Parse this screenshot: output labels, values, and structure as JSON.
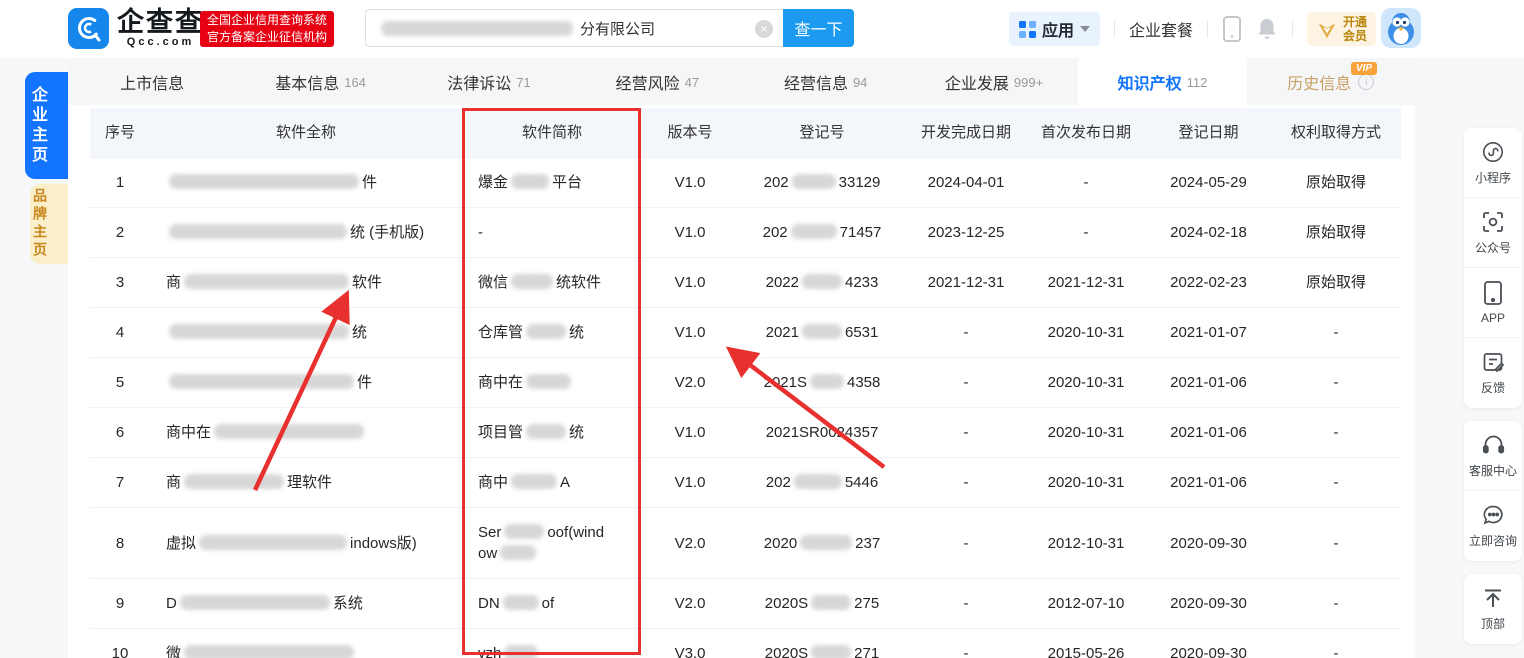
{
  "colors": {
    "brand_blue": "#1b9aef",
    "active_blue": "#1374ff",
    "badge_red": "#e60012",
    "annotation_red": "#e8312f",
    "vip_gold": "#c9a063"
  },
  "topbar": {
    "logo_cn": "企查查",
    "logo_en": "Qcc.com",
    "badge_line1": "全国企业信用查询系统",
    "badge_line2": "官方备案企业征信机构",
    "search": {
      "visible_text": "分有限公司",
      "button_label": "查一下",
      "clear_icon": "×"
    },
    "apps_label": "应用",
    "package_label": "企业套餐",
    "vip_line1": "开通",
    "vip_line2": "会员"
  },
  "left_tabs": [
    {
      "key": "enterprise",
      "label": "企业主页"
    },
    {
      "key": "brand",
      "label": "品牌主页"
    }
  ],
  "nav": {
    "tabs": [
      {
        "label": "上市信息",
        "count": ""
      },
      {
        "label": "基本信息",
        "count": "164"
      },
      {
        "label": "法律诉讼",
        "count": "71"
      },
      {
        "label": "经营风险",
        "count": "47"
      },
      {
        "label": "经营信息",
        "count": "94"
      },
      {
        "label": "企业发展",
        "count": "999+"
      },
      {
        "label": "知识产权",
        "count": "112",
        "active": true
      },
      {
        "label": "历史信息",
        "count": "",
        "vip": true,
        "vip_badge": "VIP",
        "info": true
      }
    ]
  },
  "table": {
    "columns": [
      "序号",
      "软件全称",
      "软件简称",
      "版本号",
      "登记号",
      "开发完成日期",
      "首次发布日期",
      "登记日期",
      "权利取得方式"
    ],
    "rows": [
      {
        "no": "1",
        "full": [
          [
            190,
            "件"
          ]
        ],
        "short": [
          [
            "爆金",
            38,
            "平台"
          ]
        ],
        "ver": "V1.0",
        "reg": [
          [
            "202",
            44,
            "33129"
          ]
        ],
        "dev": "2024-04-01",
        "pub": "-",
        "regd": "2024-05-29",
        "method": "原始取得"
      },
      {
        "no": "2",
        "full": [
          [
            178,
            "统 (手机版)"
          ]
        ],
        "short": [
          [
            "-"
          ]
        ],
        "ver": "V1.0",
        "reg": [
          [
            "202",
            46,
            "71457"
          ]
        ],
        "dev": "2023-12-25",
        "pub": "-",
        "regd": "2024-02-18",
        "method": "原始取得"
      },
      {
        "no": "3",
        "full": [
          [
            "商",
            165,
            "软件"
          ]
        ],
        "short": [
          [
            "微信",
            42,
            "统软件"
          ]
        ],
        "ver": "V1.0",
        "reg": [
          [
            "2022",
            40,
            "4233"
          ]
        ],
        "dev": "2021-12-31",
        "pub": "2021-12-31",
        "regd": "2022-02-23",
        "method": "原始取得"
      },
      {
        "no": "4",
        "full": [
          [
            180,
            "统"
          ]
        ],
        "short": [
          [
            "仓库管",
            40,
            "统"
          ]
        ],
        "ver": "V1.0",
        "reg": [
          [
            "2021",
            40,
            "6531"
          ]
        ],
        "dev": "-",
        "pub": "2020-10-31",
        "regd": "2021-01-07",
        "method": "-"
      },
      {
        "no": "5",
        "full": [
          [
            185,
            "件"
          ]
        ],
        "short": [
          [
            "商中在",
            45
          ]
        ],
        "ver": "V2.0",
        "reg": [
          [
            "2021S",
            34,
            "4358"
          ]
        ],
        "dev": "-",
        "pub": "2020-10-31",
        "regd": "2021-01-06",
        "method": "-"
      },
      {
        "no": "6",
        "full": [
          [
            "商中在",
            150
          ]
        ],
        "short": [
          [
            "项目管",
            40,
            "统"
          ]
        ],
        "ver": "V1.0",
        "reg": [
          [
            "2021SR0024357"
          ]
        ],
        "dev": "-",
        "pub": "2020-10-31",
        "regd": "2021-01-06",
        "method": "-"
      },
      {
        "no": "7",
        "full": [
          [
            "商",
            100,
            "理软件"
          ]
        ],
        "short": [
          [
            "商中",
            46,
            "A"
          ]
        ],
        "ver": "V1.0",
        "reg": [
          [
            "202",
            48,
            "5446"
          ]
        ],
        "dev": "-",
        "pub": "2020-10-31",
        "regd": "2021-01-06",
        "method": "-"
      },
      {
        "no": "8",
        "full": [
          [
            "虚拟",
            148,
            "indows版)"
          ]
        ],
        "short": [
          [
            "Ser",
            40,
            "oof(wind"
          ],
          [
            "ow",
            36
          ]
        ],
        "ver": "V2.0",
        "reg": [
          [
            "2020",
            52,
            "237"
          ]
        ],
        "dev": "-",
        "pub": "2012-10-31",
        "regd": "2020-09-30",
        "method": "-"
      },
      {
        "no": "9",
        "full": [
          [
            "D",
            150,
            "系统"
          ]
        ],
        "short": [
          [
            "DN",
            36,
            "of"
          ]
        ],
        "ver": "V2.0",
        "reg": [
          [
            "2020S",
            40,
            "275"
          ]
        ],
        "dev": "-",
        "pub": "2012-07-10",
        "regd": "2020-09-30",
        "method": "-"
      },
      {
        "no": "10",
        "full": [
          [
            "微",
            170
          ]
        ],
        "short": [
          [
            "vzh",
            34
          ]
        ],
        "ver": "V3.0",
        "reg": [
          [
            "2020S",
            40,
            "271"
          ]
        ],
        "dev": "-",
        "pub": "2015-05-26",
        "regd": "2020-09-30",
        "method": "-"
      }
    ]
  },
  "right_sidebar": {
    "groups": [
      [
        {
          "icon": "miniprogram-icon",
          "label": "小程序"
        },
        {
          "icon": "qr-scan-icon",
          "label": "公众号"
        },
        {
          "icon": "phone-icon",
          "label": "APP"
        },
        {
          "icon": "feedback-icon",
          "label": "反馈"
        }
      ],
      [
        {
          "icon": "headset-icon",
          "label": "客服中心"
        },
        {
          "icon": "chat-icon",
          "label": "立即咨询"
        }
      ],
      [
        {
          "icon": "back-to-top-icon",
          "label": "顶部"
        }
      ]
    ]
  },
  "annotations": {
    "highlighted_column": "软件简称",
    "arrow_count": 2
  }
}
